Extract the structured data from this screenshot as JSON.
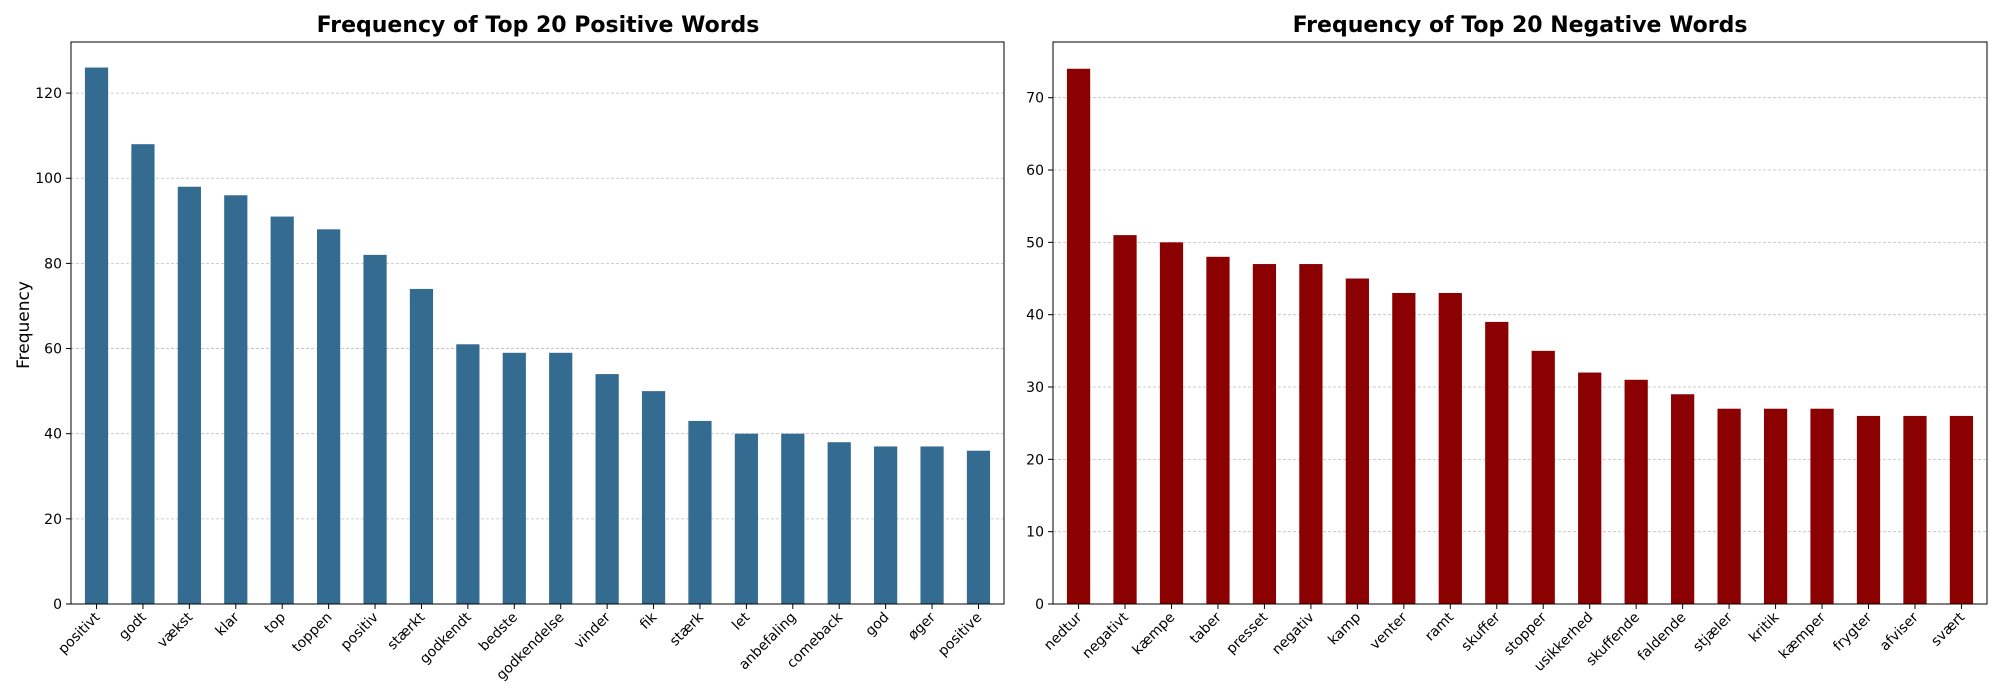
{
  "chart_data": [
    {
      "type": "bar",
      "title": "Frequency of Top 20 Positive Words",
      "xlabel": "",
      "ylabel": "Frequency",
      "ylim": [
        0,
        132
      ],
      "yticks": [
        0,
        20,
        40,
        60,
        80,
        100,
        120
      ],
      "grid": "y-dashed",
      "color": "#336b91",
      "categories": [
        "positivt",
        "godt",
        "vækst",
        "klar",
        "top",
        "toppen",
        "positiv",
        "stærkt",
        "godkendt",
        "bedste",
        "godkendelse",
        "vinder",
        "fik",
        "stærk",
        "let",
        "anbefaling",
        "comeback",
        "god",
        "øger",
        "positive"
      ],
      "values": [
        126,
        108,
        98,
        96,
        91,
        88,
        82,
        74,
        61,
        59,
        59,
        54,
        50,
        43,
        40,
        40,
        38,
        37,
        37,
        36
      ]
    },
    {
      "type": "bar",
      "title": "Frequency of Top 20 Negative Words",
      "xlabel": "",
      "ylabel": "",
      "ylim": [
        0,
        77.7
      ],
      "yticks": [
        0,
        10,
        20,
        30,
        40,
        50,
        60,
        70
      ],
      "grid": "y-dashed",
      "color": "#8b0000",
      "categories": [
        "nedtur",
        "negativt",
        "kæmpe",
        "taber",
        "presset",
        "negativ",
        "kamp",
        "venter",
        "ramt",
        "skuffer",
        "stopper",
        "usikkerhed",
        "skuffende",
        "faldende",
        "stjæler",
        "kritik",
        "kæmper",
        "frygter",
        "afviser",
        "svært"
      ],
      "values": [
        74,
        51,
        50,
        48,
        47,
        47,
        45,
        43,
        43,
        39,
        35,
        32,
        31,
        29,
        27,
        27,
        27,
        26,
        26,
        26
      ]
    }
  ]
}
